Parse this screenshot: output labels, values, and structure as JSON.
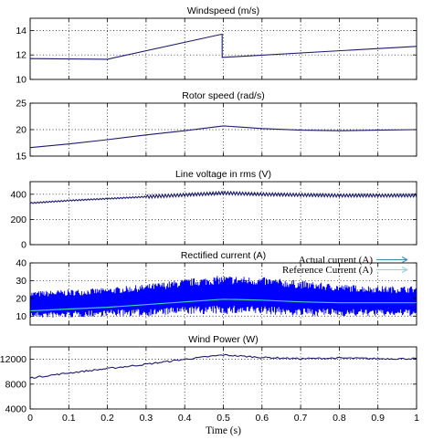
{
  "chart_data": [
    {
      "type": "line",
      "title": "Windspeed (m/s)",
      "xlim": [
        0,
        1
      ],
      "ylim": [
        10,
        15
      ],
      "yticks": [
        10,
        12,
        14
      ],
      "grid": true,
      "series": [
        {
          "color": "#1c1c6e",
          "x": [
            0,
            0.2,
            0.497,
            0.497,
            1.0
          ],
          "y": [
            11.7,
            11.65,
            13.7,
            11.8,
            12.7
          ]
        }
      ]
    },
    {
      "type": "line",
      "title": "Rotor speed  (rad/s)",
      "xlim": [
        0,
        1
      ],
      "ylim": [
        15,
        25
      ],
      "yticks": [
        15,
        20,
        25
      ],
      "grid": true,
      "series": [
        {
          "color": "#1c1c6e",
          "x": [
            0,
            0.1,
            0.2,
            0.3,
            0.4,
            0.5,
            0.6,
            0.7,
            0.8,
            0.9,
            1.0
          ],
          "y": [
            16.6,
            17.3,
            18.1,
            19.0,
            19.8,
            20.7,
            20.2,
            19.9,
            19.8,
            19.9,
            20.0
          ]
        }
      ]
    },
    {
      "type": "line",
      "title": "Line voltage in rms (V)",
      "xlim": [
        0,
        1
      ],
      "ylim": [
        0,
        500
      ],
      "yticks": [
        0,
        200,
        400
      ],
      "grid": true,
      "series": [
        {
          "color": "#1c1c6e",
          "x": [
            0,
            0.1,
            0.2,
            0.3,
            0.4,
            0.5,
            0.6,
            0.7,
            0.8,
            0.9,
            1.0
          ],
          "y": [
            330,
            350,
            365,
            380,
            395,
            410,
            400,
            395,
            390,
            390,
            390
          ]
        }
      ]
    },
    {
      "type": "area",
      "title": "Rectified current (A)",
      "xlim": [
        0,
        1
      ],
      "ylim": [
        5,
        40
      ],
      "yticks": [
        10,
        20,
        30,
        40
      ],
      "grid": true,
      "annotations": [
        "Actual current (A)",
        "Reference Current (A)"
      ],
      "series": [
        {
          "color": "#0000ff",
          "x": [
            0,
            0.1,
            0.2,
            0.3,
            0.4,
            0.5,
            0.6,
            0.7,
            0.8,
            0.9,
            1.0
          ],
          "y_low": [
            9,
            9,
            10,
            10,
            11,
            11,
            11,
            10,
            10,
            10,
            10
          ],
          "y_high": [
            24,
            25,
            26,
            28,
            31,
            33,
            32,
            30,
            28,
            27,
            27
          ]
        },
        {
          "color": "#40d0c0",
          "x": [
            0,
            0.1,
            0.2,
            0.3,
            0.4,
            0.5,
            0.6,
            0.7,
            0.8,
            0.9,
            1.0
          ],
          "y": [
            13,
            14,
            15,
            16.5,
            18,
            19.5,
            19,
            18,
            17.5,
            17.5,
            17.5
          ]
        }
      ]
    },
    {
      "type": "line",
      "title": "Wind Power (W)",
      "xlim": [
        0,
        1
      ],
      "ylim": [
        4000,
        14000
      ],
      "yticks": [
        4000,
        8000,
        12000
      ],
      "grid": true,
      "xlabel": "Time (s)",
      "xticks": [
        0,
        0.1,
        0.2,
        0.3,
        0.4,
        0.5,
        0.6,
        0.7,
        0.8,
        0.9,
        1
      ],
      "series": [
        {
          "color": "#1c1c6e",
          "x": [
            0,
            0.1,
            0.2,
            0.3,
            0.4,
            0.5,
            0.6,
            0.7,
            0.8,
            0.9,
            1.0
          ],
          "y": [
            9000,
            9800,
            10500,
            11200,
            12000,
            12700,
            12300,
            12100,
            12200,
            12100,
            12100
          ]
        }
      ]
    }
  ]
}
